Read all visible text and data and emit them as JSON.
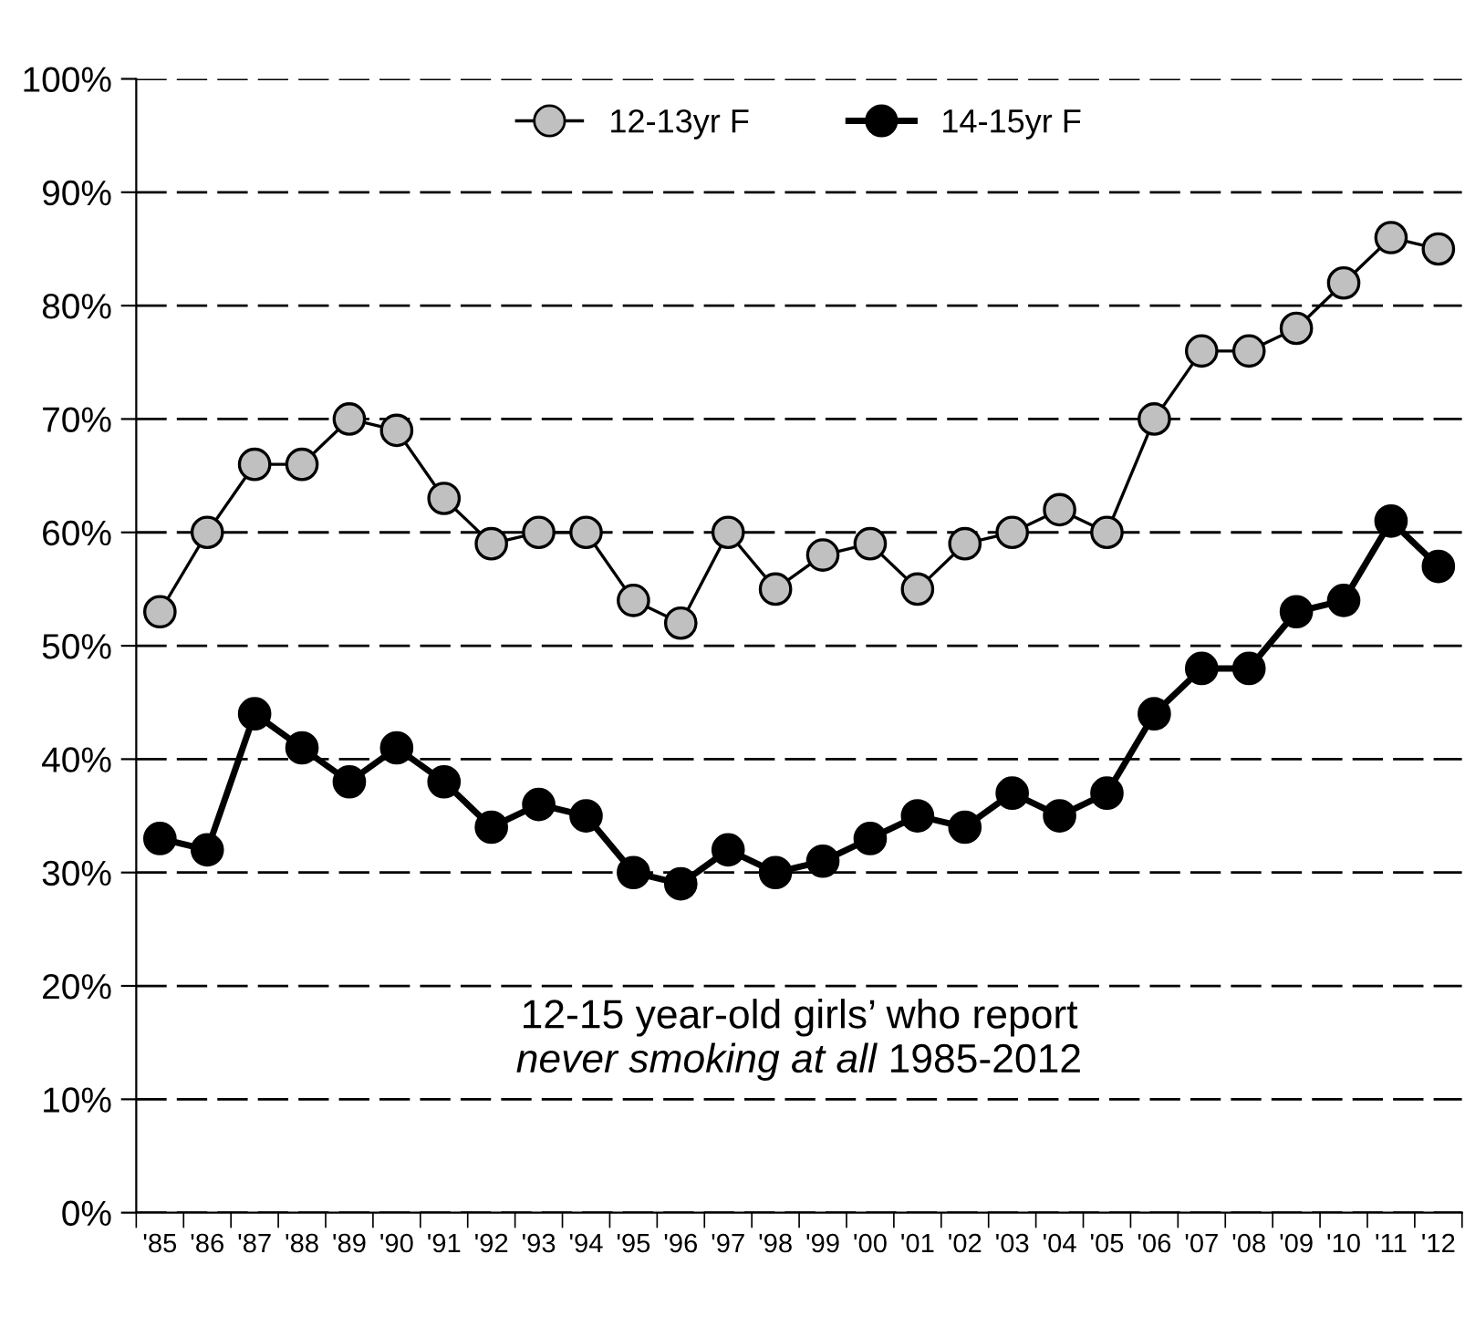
{
  "chart_data": {
    "type": "line",
    "categories": [
      "'85",
      "'86",
      "'87",
      "'88",
      "'89",
      "'90",
      "'91",
      "'92",
      "'93",
      "'94",
      "'95",
      "'96",
      "'97",
      "'98",
      "'99",
      "'00",
      "'01",
      "'02",
      "'03",
      "'04",
      "'05",
      "'06",
      "'07",
      "'08",
      "'09",
      "'10",
      "'11",
      "'12"
    ],
    "series": [
      {
        "name": "12-13yr F",
        "color": "#c0c0c0",
        "values": [
          53,
          60,
          66,
          66,
          70,
          69,
          63,
          59,
          60,
          60,
          54,
          52,
          60,
          55,
          58,
          59,
          55,
          59,
          60,
          62,
          60,
          70,
          76,
          76,
          78,
          82,
          86,
          85
        ]
      },
      {
        "name": "14-15yr F",
        "color": "#000000",
        "values": [
          33,
          32,
          44,
          41,
          38,
          41,
          38,
          34,
          36,
          35,
          30,
          29,
          32,
          30,
          31,
          33,
          35,
          34,
          37,
          35,
          37,
          44,
          48,
          48,
          53,
          54,
          61,
          57
        ]
      }
    ],
    "ylim": [
      0,
      100
    ],
    "yticks": [
      {
        "value": 0,
        "label": "0%"
      },
      {
        "value": 10,
        "label": "10%"
      },
      {
        "value": 20,
        "label": "20%"
      },
      {
        "value": 30,
        "label": "30%"
      },
      {
        "value": 40,
        "label": "40%"
      },
      {
        "value": 50,
        "label": "50%"
      },
      {
        "value": 60,
        "label": "60%"
      },
      {
        "value": 70,
        "label": "70%"
      },
      {
        "value": 80,
        "label": "80%"
      },
      {
        "value": 90,
        "label": "90%"
      },
      {
        "value": 100,
        "label": "100%"
      }
    ],
    "grid": "y",
    "legend": "top",
    "marker": "circle",
    "line_style": "solid",
    "annotations": [
      "12-15 year-old girls’ who report",
      "never smoking at all",
      " 1985-2012"
    ]
  }
}
